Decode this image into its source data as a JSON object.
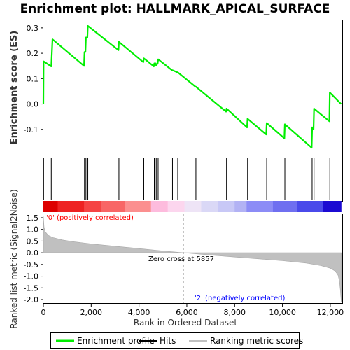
{
  "chart_data": {
    "type": "line",
    "title": "Enrichment plot: HALLMARK_APICAL_SURFACE",
    "xlabel": "Rank in Ordered Dataset",
    "x_ticks": [
      "0",
      "2,000",
      "4,000",
      "6,000",
      "8,000",
      "10,000",
      "12,000"
    ],
    "xlim": [
      0,
      12500
    ],
    "es_panel": {
      "ylabel": "Enrichment score (ES)",
      "ylim": [
        -0.2,
        0.33
      ],
      "y_ticks": [
        "0.3",
        "0.2",
        "0.1",
        "0.0",
        "-0.1"
      ],
      "y_tick_values": [
        0.3,
        0.2,
        0.1,
        0.0,
        -0.1
      ],
      "series": [
        {
          "name": "Enrichment profile",
          "color": "#00ee00",
          "x": [
            0,
            10,
            330,
            380,
            1700,
            1720,
            1760,
            1780,
            1840,
            1860,
            3140,
            3160,
            4180,
            4200,
            4620,
            4640,
            4700,
            4720,
            4780,
            4800,
            5380,
            5400,
            5600,
            5620,
            6360,
            6380,
            7640,
            7660,
            8520,
            8540,
            9320,
            9340,
            10080,
            10100,
            11220,
            11240,
            11300,
            11320,
            11960,
            11980,
            12450
          ],
          "y": [
            0.0,
            0.168,
            0.148,
            0.255,
            0.15,
            0.205,
            0.205,
            0.262,
            0.262,
            0.308,
            0.212,
            0.245,
            0.165,
            0.18,
            0.148,
            0.16,
            0.16,
            0.152,
            0.16,
            0.176,
            0.133,
            0.133,
            0.125,
            0.125,
            0.068,
            0.068,
            -0.03,
            -0.018,
            -0.092,
            -0.058,
            -0.12,
            -0.075,
            -0.135,
            -0.08,
            -0.172,
            -0.092,
            -0.1,
            -0.018,
            -0.068,
            0.045,
            0.0
          ]
        }
      ]
    },
    "hits": {
      "name": "Hits",
      "positions": [
        10,
        330,
        1720,
        1780,
        1860,
        3160,
        4200,
        4640,
        4720,
        4800,
        5400,
        5620,
        6380,
        7660,
        8540,
        9340,
        10100,
        11240,
        11320,
        11980
      ]
    },
    "rank_panel": {
      "ylabel": "Ranked list metric (Signal2Noise)",
      "ylim": [
        -2.15,
        1.65
      ],
      "y_ticks": [
        "1.5",
        "1.0",
        "0.5",
        "0.0",
        "-0.5",
        "-1.0",
        "-1.5",
        "-2.0"
      ],
      "y_tick_values": [
        1.5,
        1.0,
        0.5,
        0.0,
        -0.5,
        -1.0,
        -1.5,
        -2.0
      ],
      "series": [
        {
          "name": "Ranking metric scores",
          "color": "#c0c0c0",
          "x": [
            0,
            30,
            80,
            200,
            400,
            800,
            1200,
            2000,
            3000,
            4000,
            5000,
            5857,
            7000,
            8000,
            9000,
            10000,
            11000,
            11600,
            12000,
            12200,
            12320,
            12380,
            12420,
            12460
          ],
          "y": [
            1.55,
            1.1,
            0.9,
            0.75,
            0.65,
            0.55,
            0.48,
            0.38,
            0.28,
            0.18,
            0.08,
            0.0,
            -0.1,
            -0.18,
            -0.26,
            -0.34,
            -0.44,
            -0.55,
            -0.66,
            -0.78,
            -0.95,
            -1.2,
            -1.6,
            -2.12
          ]
        }
      ],
      "annotations": [
        {
          "text": "'0' (positively correlated)",
          "color": "#ff0000"
        },
        {
          "text": "Zero cross at 5857",
          "color": "#000000",
          "x": 5857
        },
        {
          "text": "'2' (negatively correlated)",
          "color": "#0000ff"
        }
      ]
    },
    "colorbar": {
      "segments": [
        {
          "x0": 0,
          "x1": 600,
          "color": "#dd0000"
        },
        {
          "x0": 600,
          "x1": 1700,
          "color": "#ee2222"
        },
        {
          "x0": 1700,
          "x1": 2400,
          "color": "#f54444"
        },
        {
          "x0": 2400,
          "x1": 3400,
          "color": "#f86666"
        },
        {
          "x0": 3400,
          "x1": 4500,
          "color": "#fb8f8f"
        },
        {
          "x0": 4500,
          "x1": 5200,
          "color": "#fdbbdd"
        },
        {
          "x0": 5200,
          "x1": 5900,
          "color": "#fcd6ee"
        },
        {
          "x0": 5900,
          "x1": 6600,
          "color": "#eee4f6"
        },
        {
          "x0": 6600,
          "x1": 7300,
          "color": "#dad8f6"
        },
        {
          "x0": 7300,
          "x1": 8000,
          "color": "#c8c8f6"
        },
        {
          "x0": 8000,
          "x1": 8500,
          "color": "#b2b2f4"
        },
        {
          "x0": 8500,
          "x1": 9600,
          "color": "#8c8cf6"
        },
        {
          "x0": 9600,
          "x1": 10600,
          "color": "#6f6ff0"
        },
        {
          "x0": 10600,
          "x1": 11700,
          "color": "#4a4aea"
        },
        {
          "x0": 11700,
          "x1": 12450,
          "color": "#1b0ad2"
        }
      ]
    },
    "legend": {
      "position": "bottom",
      "items": [
        {
          "label": "Enrichment profile",
          "color": "#00ee00"
        },
        {
          "label": "Hits",
          "color": "#000000"
        },
        {
          "label": "Ranking metric scores",
          "color": "#c0c0c0"
        }
      ]
    }
  }
}
